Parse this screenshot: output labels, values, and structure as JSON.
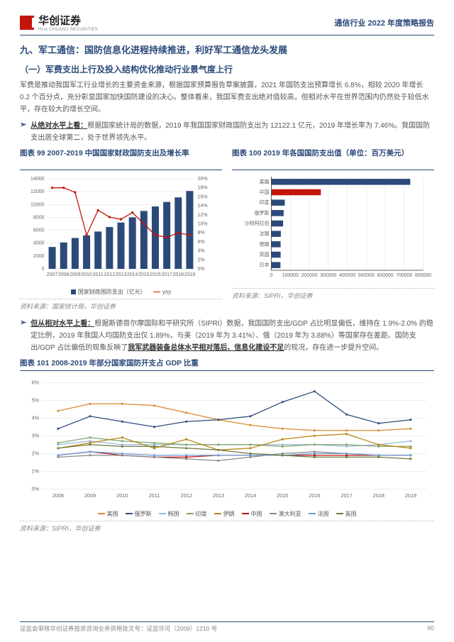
{
  "header": {
    "brand": "华创证券",
    "brand_en": "HUA CHUANG SECURITIES",
    "report": "通信行业 2022 年度策略报告"
  },
  "section_title": "九、军工通信：国防信息化进程持续推进，利好军工通信龙头发展",
  "sub_title": "（一）军费支出上行及投入结构优化推动行业景气度上行",
  "para1": "军费是推动我国军工行业增长的主要资金来源，根据国家预算报告草案披露，2021 年国防支出预算增长 6.8%，相较 2020 年增长 0.2 个百分点，充分彰显国家加快国防建设的决心。整体看来，我国军费支出绝对值较高，但相对水平在世界范围内仍然处于较低水平，存在较大的增长空间。",
  "bullet1_lead": "从绝对水平上看：",
  "bullet1_text": "根据国家统计局的数据，2019 年我国国家财政国防支出为 12122.1 亿元，2019 年增长率为 7.46%。我国国防支出居全球第二，处于世界领先水平。",
  "chart99": {
    "title": "图表 99   2007-2019 中国国家财政国防支出及增长率",
    "src": "资料来源：国家统计局，华创证券",
    "years": [
      "2007",
      "2008",
      "2009",
      "2010",
      "2011",
      "2012",
      "2013",
      "2014",
      "2015",
      "2016",
      "2017",
      "2018",
      "2019"
    ],
    "bars": [
      3400,
      4100,
      4800,
      5200,
      5800,
      6500,
      7200,
      8000,
      9000,
      9700,
      10400,
      11100,
      12100
    ],
    "line_pct": [
      18,
      18,
      17,
      7.5,
      13,
      11.5,
      11,
      12.5,
      10,
      7.5,
      7,
      8,
      7.5
    ],
    "bar_color": "#2b4a7a",
    "line_color": "#c4150b",
    "y1max": 14000,
    "y1step": 2000,
    "y2max": 20,
    "y2step": 2,
    "legend_bar": "国家财政国防支出（亿元）",
    "legend_line": "yoy"
  },
  "chart100": {
    "title": "图表 100   2019 年各国国防支出值（单位：百万美元）",
    "src": "资料来源：SIPRI，华创证券",
    "countries": [
      "美国",
      "中国",
      "印度",
      "俄罗斯",
      "沙特阿拉伯",
      "法国",
      "德国",
      "英国",
      "日本"
    ],
    "values": [
      732000,
      261000,
      71000,
      65000,
      62000,
      50000,
      49000,
      49000,
      48000
    ],
    "colors": [
      "#2b4a7a",
      "#c4150b",
      "#2b4a7a",
      "#2b4a7a",
      "#2b4a7a",
      "#2b4a7a",
      "#2b4a7a",
      "#2b4a7a",
      "#2b4a7a"
    ],
    "xmax": 800000,
    "xstep": 100000
  },
  "bullet2_lead": "但从相对水平上看：",
  "bullet2_text": "根据斯德哥尔摩国际和平研究所（SIPRI）数据，我国国防支出/GDP 占比明显偏低，维持在 1.9%-2.0% 的稳定比例，2019 年我国人均国防支出仅 1.89%，与美（2019 年为 3.41%）、俄（2019 年为 3.88%）等国家存在差距。国防支出/GDP 占比偏低的现象反映了",
  "bullet2_u": "我军武器装备总体水平相对落后、信息化建设不足",
  "bullet2_tail": "的现况，存在进一步提升空间。",
  "chart101": {
    "title": "图表 101   2008-2019 年部分国家国防开支占 GDP 比重",
    "src": "资料来源：SIPRI，华创证券",
    "years": [
      "2008",
      "2009",
      "2010",
      "2011",
      "2012",
      "2013",
      "2014",
      "2015",
      "2016",
      "2017",
      "2018",
      "2019"
    ],
    "ymax": 6,
    "ystep": 1,
    "series": [
      {
        "name": "美国",
        "color": "#d98a2b",
        "vals": [
          4.4,
          4.8,
          4.8,
          4.7,
          4.3,
          3.9,
          3.6,
          3.4,
          3.3,
          3.3,
          3.3,
          3.4
        ]
      },
      {
        "name": "俄罗斯",
        "color": "#2b4a7a",
        "vals": [
          3.4,
          4.1,
          3.8,
          3.5,
          3.8,
          3.9,
          4.1,
          4.9,
          5.5,
          4.2,
          3.7,
          3.9
        ]
      },
      {
        "name": "韩国",
        "color": "#9ab6e0",
        "vals": [
          2.5,
          2.7,
          2.5,
          2.5,
          2.5,
          2.5,
          2.5,
          2.5,
          2.5,
          2.4,
          2.5,
          2.7
        ]
      },
      {
        "name": "印度",
        "color": "#7fa666",
        "vals": [
          2.6,
          2.9,
          2.7,
          2.6,
          2.5,
          2.5,
          2.5,
          2.4,
          2.5,
          2.5,
          2.4,
          2.4
        ]
      },
      {
        "name": "伊朗",
        "color": "#b8860b",
        "vals": [
          2.3,
          2.6,
          2.9,
          2.3,
          2.8,
          2.2,
          2.3,
          2.8,
          3.0,
          3.1,
          2.5,
          2.3
        ]
      },
      {
        "name": "中国",
        "color": "#c4150b",
        "vals": [
          1.9,
          2.1,
          1.9,
          1.8,
          1.8,
          1.9,
          1.9,
          1.9,
          1.9,
          1.9,
          1.9,
          1.9
        ]
      },
      {
        "name": "澳大利亚",
        "color": "#888",
        "vals": [
          1.8,
          1.9,
          1.9,
          1.8,
          1.7,
          1.6,
          1.8,
          2.0,
          2.1,
          2.0,
          1.9,
          1.9
        ]
      },
      {
        "name": "法国",
        "color": "#6a9bd8",
        "vals": [
          1.9,
          2.1,
          2.0,
          1.9,
          1.9,
          1.9,
          1.9,
          1.9,
          2.0,
          2.0,
          1.9,
          1.9
        ]
      },
      {
        "name": "英国",
        "color": "#6b7a40",
        "vals": [
          2.3,
          2.5,
          2.4,
          2.4,
          2.3,
          2.2,
          2.0,
          1.9,
          1.8,
          1.8,
          1.8,
          1.7
        ]
      }
    ]
  },
  "footer": {
    "left": "证监会审核华创证券投资咨询业务资格批文号：证监许可（2009）1210 号",
    "page": "60"
  }
}
